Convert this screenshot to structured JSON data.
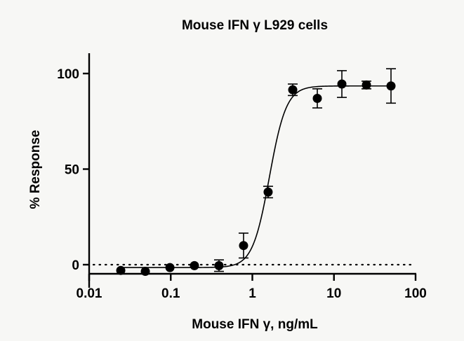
{
  "chart_data": {
    "type": "scatter",
    "title": "Mouse IFN γ L929 cells",
    "xlabel": "Mouse IFN γ, ng/mL",
    "ylabel": "% Response",
    "x_scale": "log",
    "xlim": [
      0.01,
      100
    ],
    "ylim": [
      -5,
      110
    ],
    "x_ticks": [
      0.01,
      0.1,
      1,
      10,
      100
    ],
    "x_tick_labels": [
      "0.01",
      "0.1",
      "1",
      "10",
      "100"
    ],
    "y_ticks": [
      0,
      50,
      100
    ],
    "y_tick_labels": [
      "0",
      "50",
      "100"
    ],
    "grid": false,
    "legend": null,
    "reference_line": {
      "y": 0,
      "style": "dotted"
    },
    "series": [
      {
        "name": "Mouse IFN γ",
        "marker": "filled-circle",
        "x": [
          0.0244,
          0.0488,
          0.0977,
          0.195,
          0.39,
          0.78,
          1.56,
          3.125,
          6.25,
          12.5,
          25,
          50
        ],
        "y": [
          -3,
          -3.5,
          -1.5,
          -0.5,
          -0.5,
          10,
          38,
          91.5,
          87,
          94.5,
          94,
          93.5
        ],
        "error": [
          0,
          0,
          0,
          0,
          3,
          6.5,
          3,
          3,
          5,
          7,
          2,
          9
        ]
      }
    ],
    "fit": {
      "model": "4PL",
      "bottom": -1.5,
      "top": 93.5,
      "ec50": 1.62,
      "hill_slope": 4.2
    }
  }
}
